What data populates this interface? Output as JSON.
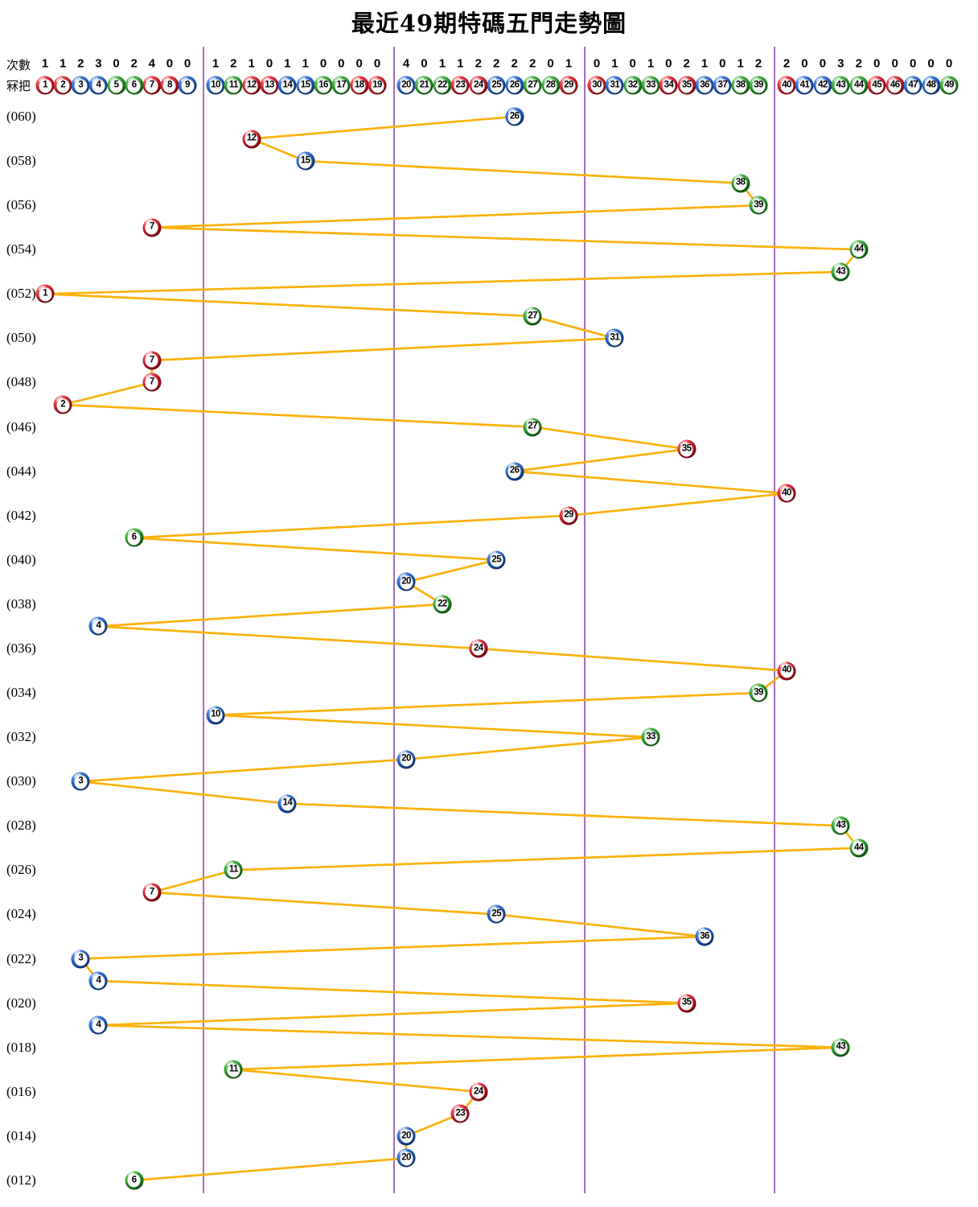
{
  "title": "最近49期特碼五門走勢圖",
  "header": {
    "counts_label": "次數",
    "numbers_label": "冧把",
    "counts": [
      1,
      1,
      2,
      3,
      0,
      2,
      4,
      0,
      0,
      1,
      2,
      1,
      0,
      1,
      1,
      0,
      0,
      0,
      0,
      4,
      0,
      1,
      1,
      2,
      2,
      2,
      2,
      0,
      1,
      0,
      1,
      0,
      1,
      0,
      2,
      1,
      0,
      1,
      2,
      2,
      0,
      0,
      3,
      2,
      0,
      0,
      0,
      0,
      0
    ]
  },
  "chart_data": {
    "type": "line",
    "title": "最近49期特碼五門走勢圖",
    "x_axis": "ball numbers 1-49 grouped in five sections (五門)",
    "y_axis": "draw period, top (060) to bottom (012)",
    "sections": [
      [
        1,
        9
      ],
      [
        10,
        19
      ],
      [
        20,
        29
      ],
      [
        30,
        39
      ],
      [
        40,
        49
      ]
    ],
    "ball_color_groups": {
      "red": [
        1,
        2,
        7,
        8,
        12,
        13,
        18,
        19,
        23,
        24,
        29,
        30,
        34,
        35,
        40,
        45,
        46
      ],
      "blue": [
        3,
        4,
        9,
        10,
        14,
        15,
        20,
        25,
        26,
        31,
        36,
        37,
        41,
        42,
        47,
        48
      ],
      "green": [
        5,
        6,
        11,
        16,
        17,
        21,
        22,
        27,
        28,
        32,
        33,
        38,
        39,
        43,
        44,
        49
      ]
    },
    "line_color": "#FBB10A",
    "separator_color": "#7D2FA8",
    "ball_colors": {
      "red": "#C0101F",
      "blue": "#1A55B8",
      "green": "#1F8F1F"
    },
    "rows": [
      {
        "period": 60,
        "label": "(060)",
        "ball": 26
      },
      {
        "period": 59,
        "ball": 12
      },
      {
        "period": 58,
        "label": "(058)",
        "ball": 15
      },
      {
        "period": 57,
        "ball": 38
      },
      {
        "period": 56,
        "label": "(056)",
        "ball": 39
      },
      {
        "period": 55,
        "ball": 7
      },
      {
        "period": 54,
        "label": "(054)",
        "ball": 44
      },
      {
        "period": 53,
        "ball": 43
      },
      {
        "period": 52,
        "label": "(052)",
        "ball": 1
      },
      {
        "period": 51,
        "ball": 27
      },
      {
        "period": 50,
        "label": "(050)",
        "ball": 31
      },
      {
        "period": 49,
        "ball": 7
      },
      {
        "period": 48,
        "label": "(048)",
        "ball": 7
      },
      {
        "period": 47,
        "ball": 2
      },
      {
        "period": 46,
        "label": "(046)",
        "ball": 27
      },
      {
        "period": 45,
        "ball": 35
      },
      {
        "period": 44,
        "label": "(044)",
        "ball": 26
      },
      {
        "period": 43,
        "ball": 40
      },
      {
        "period": 42,
        "label": "(042)",
        "ball": 29
      },
      {
        "period": 41,
        "ball": 6
      },
      {
        "period": 40,
        "label": "(040)",
        "ball": 25
      },
      {
        "period": 39,
        "ball": 20
      },
      {
        "period": 38,
        "label": "(038)",
        "ball": 22
      },
      {
        "period": 37,
        "ball": 4
      },
      {
        "period": 36,
        "label": "(036)",
        "ball": 24
      },
      {
        "period": 35,
        "ball": 40
      },
      {
        "period": 34,
        "label": "(034)",
        "ball": 39
      },
      {
        "period": 33,
        "ball": 10
      },
      {
        "period": 32,
        "label": "(032)",
        "ball": 33
      },
      {
        "period": 31,
        "ball": 20
      },
      {
        "period": 30,
        "label": "(030)",
        "ball": 3
      },
      {
        "period": 29,
        "ball": 14
      },
      {
        "period": 28,
        "label": "(028)",
        "ball": 43
      },
      {
        "period": 27,
        "ball": 44
      },
      {
        "period": 26,
        "label": "(026)",
        "ball": 11
      },
      {
        "period": 25,
        "ball": 7
      },
      {
        "period": 24,
        "label": "(024)",
        "ball": 25
      },
      {
        "period": 23,
        "ball": 36
      },
      {
        "period": 22,
        "label": "(022)",
        "ball": 3
      },
      {
        "period": 21,
        "ball": 4
      },
      {
        "period": 20,
        "label": "(020)",
        "ball": 35
      },
      {
        "period": 19,
        "ball": 4
      },
      {
        "period": 18,
        "label": "(018)",
        "ball": 43
      },
      {
        "period": 17,
        "ball": 11
      },
      {
        "period": 16,
        "label": "(016)",
        "ball": 24
      },
      {
        "period": 15,
        "ball": 23
      },
      {
        "period": 14,
        "label": "(014)",
        "ball": 20
      },
      {
        "period": 13,
        "ball": 20
      },
      {
        "period": 12,
        "label": "(012)",
        "ball": 6
      }
    ]
  }
}
